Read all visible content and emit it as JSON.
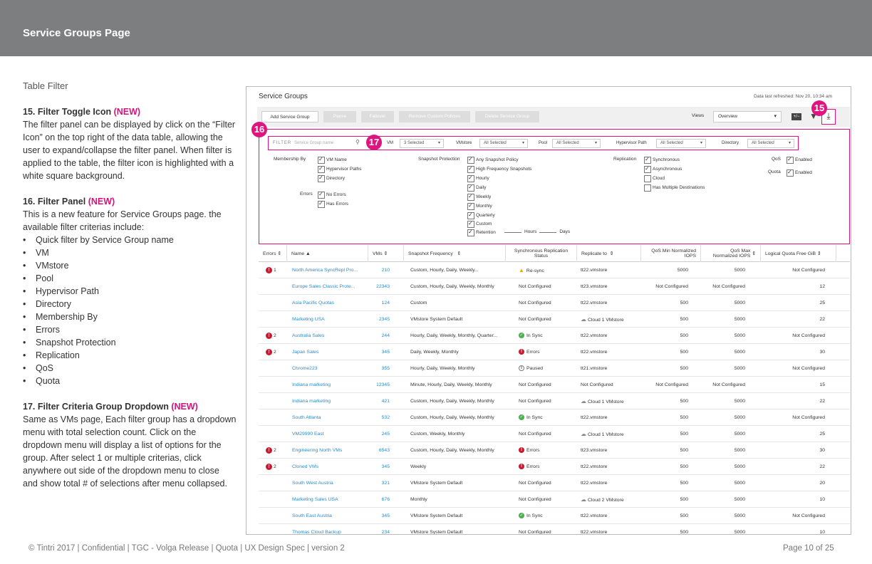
{
  "header": {
    "title": "Service Groups Page"
  },
  "left": {
    "subtitle": "Table Filter",
    "s15": {
      "title": "15. Filter Toggle Icon ",
      "new": "(NEW)",
      "body": "The filter panel can be displayed by click on the “Filter Icon” on the top right of the data table, allowing the user to expand/collapse the filter panel. When filter is applied to the table, the filter icon is highlighted with a white square background."
    },
    "s16": {
      "title": "16. Filter Panel ",
      "new": "(NEW)",
      "body": "This is a new feature for Service Groups page. the available filter criterias include:",
      "items": [
        "Quick filter by Service Group name",
        "VM",
        "VMstore",
        "Pool",
        "Hypervisor Path",
        "Directory",
        "Membership By",
        "Errors",
        "Snapshot Protection",
        "Replication",
        "QoS",
        "Quota"
      ]
    },
    "s17": {
      "title": "17. Filter Criteria Group Dropdown ",
      "new": "(NEW)",
      "body": "Same as VMs page, Each filter group has a dropdown menu with total selection count. Click on the dropdown menu will display a list of options for the group. After select 1 or multiple criterias, click anywhere out side of the dropdown menu to close and show total # of selections after menu collapsed."
    }
  },
  "footer": {
    "left": "© Tintri 2017  | Confidential |  TGC - Volga Release  |  Quota  |  UX Design Spec  |  version 2",
    "right": "Page 10 of 25"
  },
  "shot": {
    "title": "Service Groups",
    "refresh": "Data last refreshed: Nov 20, 10:34 am",
    "buttons": [
      "Add Service Group",
      "Pause",
      "Failover",
      "Remove Custom Policies",
      "Delete Service Group"
    ],
    "views_label": "Views",
    "views_value": "Overview",
    "callouts": [
      "15",
      "16",
      "17"
    ],
    "filter": {
      "quick_prefix": "FILTER",
      "quick_placeholder": "Service Group name",
      "groups": [
        {
          "label": "VM",
          "value": "3 Selected"
        },
        {
          "label": "VMstore",
          "value": "All Selected"
        },
        {
          "label": "Pool",
          "value": "All Selected"
        },
        {
          "label": "Hypervisor Path",
          "value": "All Selected"
        },
        {
          "label": "Directory",
          "value": "All Selected"
        }
      ],
      "membership_label": "Membership By",
      "membership": [
        "VM Name",
        "Hypervisor Paths",
        "Directory"
      ],
      "errors_label": "Errors",
      "errors": [
        "No Errors",
        "Has Errors"
      ],
      "snap_label": "Snapshot Protection",
      "snap": [
        "Any Snapshot Policy",
        "High Frequency Snapshots",
        "Hourly",
        "Daily",
        "Weekly",
        "Monthly",
        "Quarterly",
        "Custom",
        "Retention"
      ],
      "hours": "Hours",
      "days": "Days",
      "repl_label": "Replication",
      "repl": [
        {
          "t": "Synchronous",
          "on": true
        },
        {
          "t": "Asynchronous",
          "on": true
        },
        {
          "t": "Cloud",
          "on": false
        },
        {
          "t": "Has Multiple Destinations",
          "on": false
        }
      ],
      "qos_label": "QoS",
      "quota_label": "Quota",
      "enabled": "Enabled"
    },
    "columns": [
      "Errors",
      "Name",
      "VMs",
      "Snapshot Frequency",
      "Synchronous Replication Status",
      "Replicate to",
      "QoS Min Normalized IOPS",
      "QoS Max Normalized IOPS",
      "Logical Quota Free GiB"
    ],
    "rows": [
      {
        "err": "1",
        "name": "North America SyncRepl Pro...",
        "vms": "210",
        "freq": "Custom, Hourly, Daily, Weekly...",
        "st": "warn",
        "status": "Re-sync",
        "rep": "tt22.vmstore",
        "min": "5000",
        "max": "5000",
        "quota": "Not Configured"
      },
      {
        "err": "",
        "name": "Europe Sales Classic Prote...",
        "vms": "22343",
        "freq": "Custom, Hourly, Daily, Weekly, Monthly",
        "st": "",
        "status": "Not Configured",
        "rep": "tt23.vmstore",
        "min": "Not Configured",
        "max": "Not Configured",
        "quota": "12"
      },
      {
        "err": "",
        "name": "Asia Pacific Quotas",
        "vms": "124",
        "freq": "Custom",
        "st": "",
        "status": "Not Configured",
        "rep": "tt22.vmstore",
        "min": "500",
        "max": "5000",
        "quota": "25"
      },
      {
        "err": "",
        "name": "Marketing USA",
        "vms": "2345",
        "freq": "VMstore System Default",
        "st": "",
        "status": "Not Configured",
        "rep": "Cloud 1 VMstore",
        "cloud": true,
        "min": "500",
        "max": "5000",
        "quota": "22"
      },
      {
        "err": "2",
        "name": "Australia Sales",
        "vms": "244",
        "freq": "Hourly, Daily, Weekly, Monthly,  Quarter...",
        "st": "ok",
        "status": "In Sync",
        "rep": "tt22.vmstore",
        "min": "500",
        "max": "5000",
        "quota": "Not Configured"
      },
      {
        "err": "2",
        "name": "Japan Sales",
        "vms": "345",
        "freq": "Daily, Weekly, Monthly",
        "st": "err",
        "status": "Errors",
        "rep": "tt22.vmstore",
        "min": "500",
        "max": "5000",
        "quota": "30"
      },
      {
        "err": "",
        "name": "Chrome223",
        "vms": "355",
        "freq": "Hourly, Daily, Weekly, Monthly",
        "st": "pause",
        "status": "Paused",
        "rep": "tt21.vmstore",
        "min": "500",
        "max": "5000",
        "quota": "Not Configured"
      },
      {
        "err": "",
        "name": "Indiana marketing",
        "vms": "12345",
        "freq": "Minute, Hourly, Daily, Weekly, Monthly",
        "st": "",
        "status": "Not Configured",
        "rep": "Not Configured",
        "min": "Not Configured",
        "max": "Not Configured",
        "quota": "15"
      },
      {
        "err": "",
        "name": "Indiana marketing",
        "vms": "421",
        "freq": "Custom, Hourly, Daily, Weekly, Monthly",
        "st": "",
        "status": "Not Configured",
        "rep": "Cloud 1 VMstore",
        "cloud": true,
        "min": "500",
        "max": "5000",
        "quota": "22"
      },
      {
        "err": "",
        "name": "South Atlanta",
        "vms": "532",
        "freq": "Custom, Hourly, Daily, Weekly, Monthly",
        "st": "ok",
        "status": "In Sync",
        "rep": "tt22.vmstore",
        "min": "500",
        "max": "5000",
        "quota": "Not Configured"
      },
      {
        "err": "",
        "name": "VM29990 East",
        "vms": "245",
        "freq": "Custom, Weekly, Monthly",
        "st": "",
        "status": "Not Configured",
        "rep": "Cloud 1 VMstore",
        "cloud": true,
        "min": "500",
        "max": "5000",
        "quota": "25"
      },
      {
        "err": "2",
        "name": "Engineering North VMs",
        "vms": "6543",
        "freq": "Custom, Hourly, Daily, Weekly, Monthly",
        "st": "err",
        "status": "Errors",
        "rep": "tt23.vmstore",
        "min": "500",
        "max": "5000",
        "quota": "30"
      },
      {
        "err": "2",
        "name": "Cloned VMs",
        "vms": "345",
        "freq": "Weekly",
        "st": "err",
        "status": "Errors",
        "rep": "tt22.vmstore",
        "min": "500",
        "max": "5000",
        "quota": "22"
      },
      {
        "err": "",
        "name": "South West Austria",
        "vms": "321",
        "freq": "VMstore System Default",
        "st": "",
        "status": "Not Configured",
        "rep": "tt22.vmstore",
        "min": "500",
        "max": "5000",
        "quota": "20"
      },
      {
        "err": "",
        "name": "Marketing Sales USA",
        "vms": "676",
        "freq": "Monthly",
        "st": "",
        "status": "Not Configured",
        "rep": "Cloud 2 VMstore",
        "cloud": true,
        "min": "500",
        "max": "5000",
        "quota": "10"
      },
      {
        "err": "",
        "name": "South East Austria",
        "vms": "345",
        "freq": "VMstore System Default",
        "st": "ok",
        "status": "In Sync",
        "rep": "tt22.vmstore",
        "min": "500",
        "max": "5000",
        "quota": "Not Configured"
      },
      {
        "err": "",
        "name": "Thomas Cloud Backup",
        "vms": "234",
        "freq": "VMstore System Default",
        "st": "",
        "status": "Not Configured",
        "rep": "tt22.vmstore",
        "min": "500",
        "max": "5000",
        "quota": "10"
      }
    ]
  }
}
